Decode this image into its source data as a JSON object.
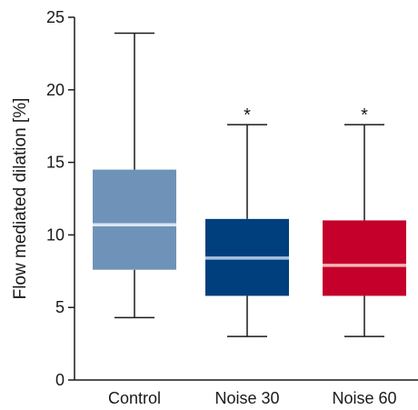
{
  "chart_data": {
    "type": "boxplot",
    "ylabel": "Flow mediated dilation [%]",
    "ylim": [
      0,
      25
    ],
    "yticks": [
      0,
      5,
      10,
      15,
      20,
      25
    ],
    "ytick_labels": [
      "0",
      "5",
      "10",
      "15",
      "20",
      "25"
    ],
    "grid": false,
    "categories": [
      "Control",
      "Noise 30",
      "Noise 60"
    ],
    "boxes": [
      {
        "category": "Control",
        "min": 4.3,
        "q1": 7.6,
        "median": 10.7,
        "q3": 14.5,
        "max": 23.9,
        "annotation": "",
        "color": "#6f93b8",
        "median_color": "#dce6f2"
      },
      {
        "category": "Noise 30",
        "min": 3.0,
        "q1": 5.8,
        "median": 8.4,
        "q3": 11.1,
        "max": 17.6,
        "annotation": "*",
        "color": "#003f7d",
        "median_color": "#a9c0dd"
      },
      {
        "category": "Noise 60",
        "min": 3.0,
        "q1": 5.8,
        "median": 7.9,
        "q3": 11.0,
        "max": 17.6,
        "annotation": "*",
        "color": "#c4002b",
        "median_color": "#f4b7b3"
      }
    ]
  }
}
